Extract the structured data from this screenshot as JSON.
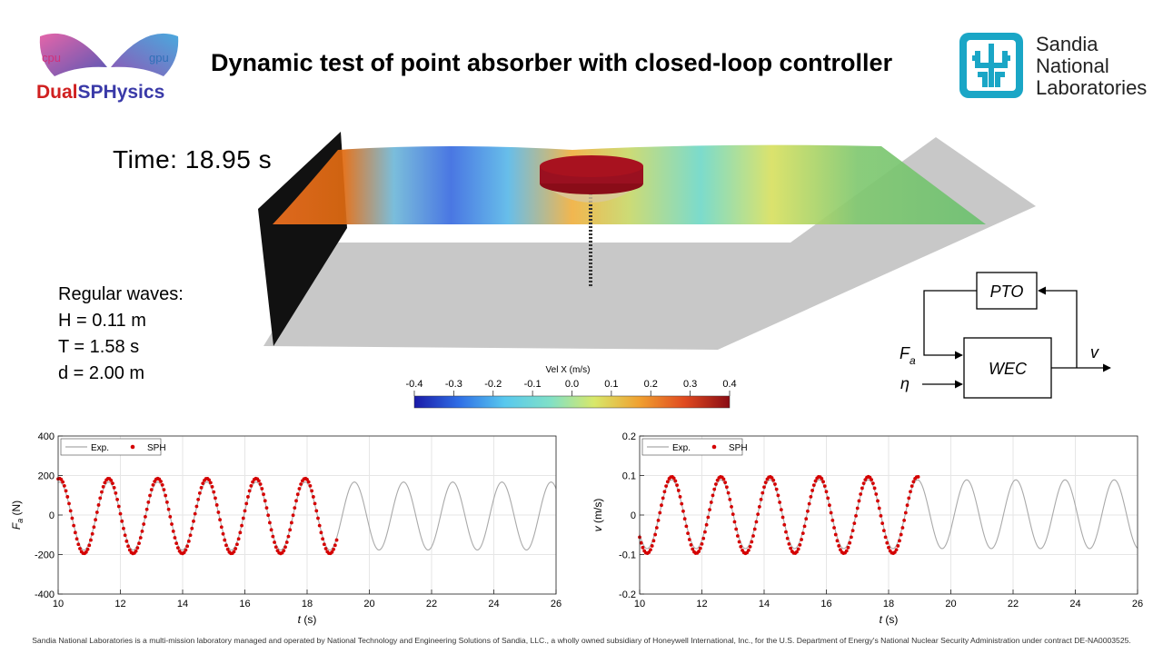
{
  "title": "Dynamic test of point absorber with closed-loop controller",
  "logos": {
    "dualsphysics": {
      "cpu": "cpu",
      "gpu": "gpu",
      "name_part1": "Dual",
      "name_part2": "SPHysics"
    },
    "sandia": {
      "line1": "Sandia",
      "line2": "National",
      "line3": "Laboratories"
    }
  },
  "time_label": "Time: 18.95 s",
  "waves": {
    "heading": "Regular waves:",
    "h": "H = 0.11 m",
    "t": "T = 1.58 s",
    "d": "d = 2.00 m"
  },
  "colorbar": {
    "title": "Vel X (m/s)",
    "ticks": [
      "-0.4",
      "-0.3",
      "-0.2",
      "-0.1",
      "0.0",
      "0.1",
      "0.2",
      "0.3",
      "0.4"
    ],
    "colors": [
      "#1a1aa8",
      "#2f6fe6",
      "#58c8ee",
      "#7fe0c8",
      "#d8e86a",
      "#f0a030",
      "#e04a20",
      "#8a0c14"
    ]
  },
  "block_diagram": {
    "pto": "PTO",
    "wec": "WEC",
    "input1": "F",
    "input1_sub": "a",
    "input2": "η",
    "output": "v"
  },
  "chart_data": [
    {
      "type": "line",
      "xlabel": "t (s)",
      "ylabel": "Fa (N)",
      "xlim": [
        10,
        26
      ],
      "ylim": [
        -400,
        400
      ],
      "xticks": [
        10,
        12,
        14,
        16,
        18,
        20,
        22,
        24,
        26
      ],
      "yticks": [
        400,
        200,
        0,
        -200,
        -400
      ],
      "grid": true,
      "legend": "top-left",
      "series": [
        {
          "name": "Exp.",
          "color": "#a9a9a9",
          "style": "line",
          "x_range": [
            10,
            26
          ],
          "period": 1.58,
          "peak_time": 11.62,
          "amplitude": 172,
          "offset": -5
        },
        {
          "name": "SPH",
          "color": "#d40000",
          "style": "dots",
          "x_range": [
            10,
            18.95
          ],
          "period": 1.58,
          "peak_time": 11.62,
          "amplitude": 190,
          "offset": -5
        }
      ]
    },
    {
      "type": "line",
      "xlabel": "t (s)",
      "ylabel": "v (m/s)",
      "xlim": [
        10,
        26
      ],
      "ylim": [
        -0.2,
        0.2
      ],
      "xticks": [
        10,
        12,
        14,
        16,
        18,
        20,
        22,
        24,
        26
      ],
      "yticks": [
        0.2,
        0.1,
        0,
        -0.1,
        -0.2
      ],
      "grid": true,
      "legend": "top-left",
      "series": [
        {
          "name": "Exp.",
          "color": "#a9a9a9",
          "style": "line",
          "x_range": [
            10,
            26
          ],
          "period": 1.58,
          "peak_time": 11.03,
          "amplitude": 0.087,
          "offset": 0.002
        },
        {
          "name": "SPH",
          "color": "#d40000",
          "style": "dots",
          "x_range": [
            10,
            18.95
          ],
          "period": 1.58,
          "peak_time": 11.03,
          "amplitude": 0.097,
          "offset": 0.0
        }
      ]
    }
  ],
  "footer": "Sandia National Laboratories is a multi-mission laboratory managed and operated by National Technology and Engineering Solutions of Sandia, LLC., a wholly owned subsidiary of Honeywell International, Inc., for the U.S. Department of Energy's National Nuclear Security Administration under contract DE-NA0003525."
}
